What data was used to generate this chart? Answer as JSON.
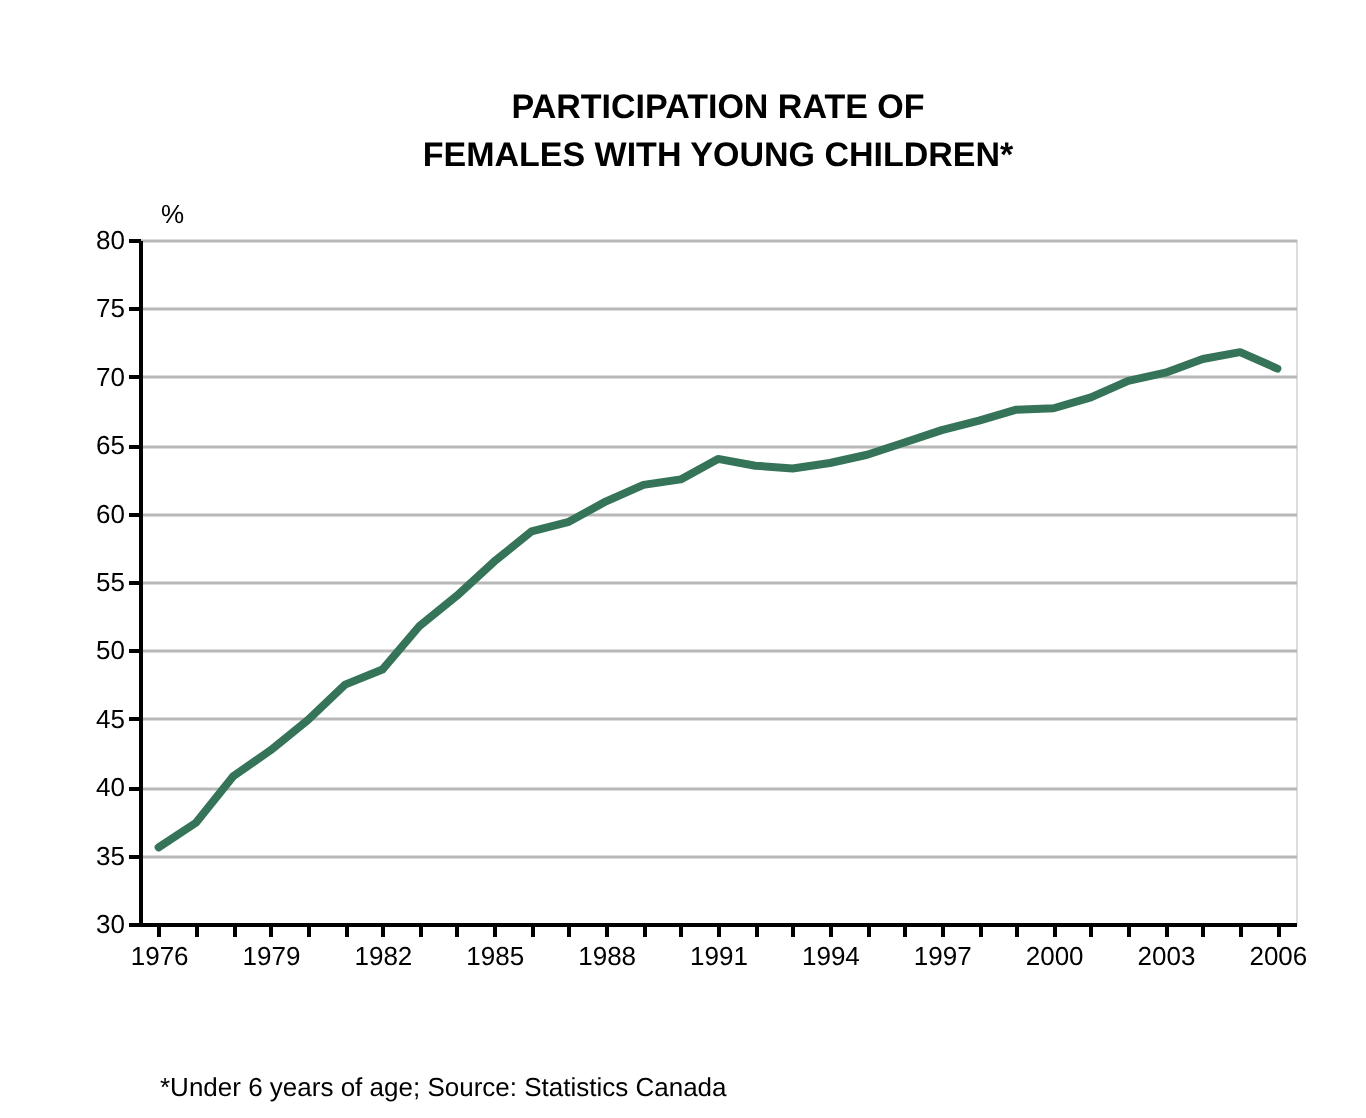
{
  "chart_data": {
    "type": "line",
    "title": "PARTICIPATION RATE OF FEMALES WITH YOUNG CHILDREN*",
    "ylabel": "%",
    "categories": [
      "1976",
      null,
      null,
      "1979",
      null,
      null,
      "1982",
      null,
      null,
      "1985",
      null,
      null,
      "1988",
      null,
      null,
      "1991",
      null,
      null,
      "1994",
      null,
      null,
      "1997",
      null,
      null,
      "2000",
      null,
      null,
      "2003",
      null,
      null,
      "2006"
    ],
    "series": [
      {
        "color": "#367459",
        "values": [
          35.6,
          37.4,
          40.8,
          42.7,
          44.9,
          47.5,
          48.6,
          51.8,
          54.0,
          56.5,
          58.7,
          59.4,
          60.9,
          62.1,
          62.5,
          64.0,
          63.5,
          63.3,
          63.7,
          64.3,
          65.2,
          66.1,
          66.8,
          67.6,
          67.7,
          68.5,
          69.7,
          70.3,
          71.3,
          71.8,
          70.6
        ]
      }
    ],
    "ylim": [
      30,
      80
    ],
    "yticks": [
      30,
      35,
      40,
      45,
      50,
      55,
      60,
      65,
      70,
      75,
      80
    ],
    "grid": "y",
    "legend": false,
    "marker": "none",
    "line_style": "solid",
    "annotations": [
      "*Under 6 years of age; Source: Statistics Canada"
    ]
  }
}
